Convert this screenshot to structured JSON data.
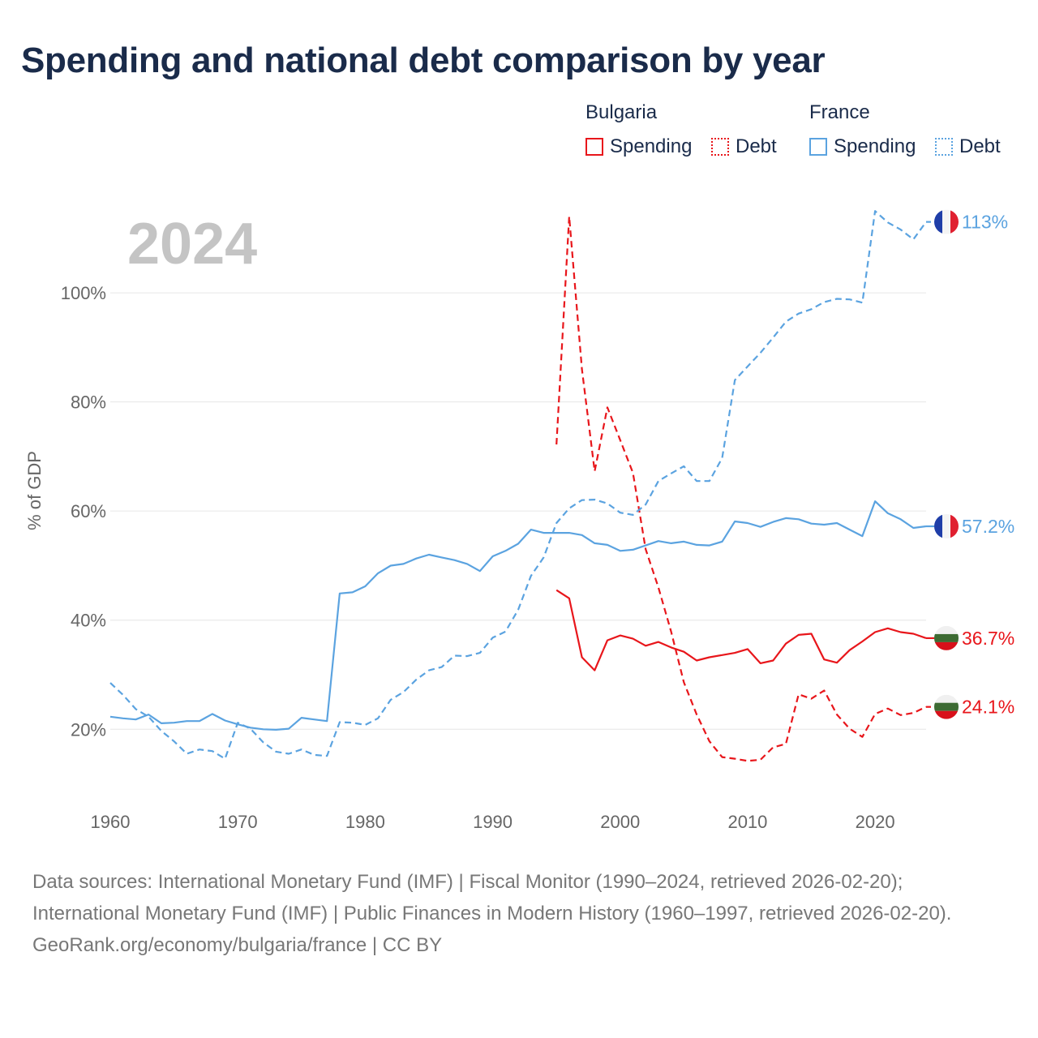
{
  "title": "Spending and national debt comparison by year",
  "legend": {
    "bulgaria": {
      "title": "Bulgaria",
      "spending": "Spending",
      "debt": "Debt"
    },
    "france": {
      "title": "France",
      "spending": "Spending",
      "debt": "Debt"
    }
  },
  "colors": {
    "bulgaria": "#e8161b",
    "france": "#5ba3e0",
    "year_watermark": "#c4c4c4",
    "grid": "#e6e6e6",
    "axis_text": "#666666"
  },
  "footer": {
    "sources": "Data sources: International Monetary Fund (IMF) | Fiscal Monitor (1990–2024, retrieved 2026-02-20); International Monetary Fund (IMF) | Public Finances in Modern History (1960–1997, retrieved 2026-02-20).",
    "credit": "GeoRank.org/economy/bulgaria/france | CC BY"
  },
  "chart_data": {
    "type": "line",
    "year_label": "2024",
    "ylabel": "% of GDP",
    "xlabel": "",
    "xlim": [
      1960,
      2024
    ],
    "ylim": [
      8,
      118
    ],
    "x_ticks": [
      1960,
      1970,
      1980,
      1990,
      2000,
      2010,
      2020
    ],
    "x_tick_labels": [
      "1960",
      "1970",
      "1980",
      "1990",
      "2000",
      "2010",
      "2020"
    ],
    "y_ticks": [
      20,
      40,
      60,
      80,
      100
    ],
    "y_tick_labels": [
      "20%",
      "40%",
      "60%",
      "80%",
      "100%"
    ],
    "series": [
      {
        "name": "Bulgaria Spending",
        "country": "bulgaria",
        "style": "solid",
        "end_label": "36.7%",
        "x": [
          1995,
          1996,
          1997,
          1998,
          1999,
          2000,
          2001,
          2002,
          2003,
          2004,
          2005,
          2006,
          2007,
          2008,
          2009,
          2010,
          2011,
          2012,
          2013,
          2014,
          2015,
          2016,
          2017,
          2018,
          2019,
          2020,
          2021,
          2022,
          2023,
          2024
        ],
        "y": [
          45.5,
          44.0,
          33.2,
          30.8,
          36.3,
          37.2,
          36.6,
          35.3,
          36.0,
          35.0,
          34.2,
          32.6,
          33.2,
          33.6,
          34.0,
          34.7,
          32.1,
          32.6,
          35.7,
          37.3,
          37.5,
          32.8,
          32.2,
          34.5,
          36.1,
          37.8,
          38.5,
          37.8,
          37.5,
          36.7
        ]
      },
      {
        "name": "Bulgaria Debt",
        "country": "bulgaria",
        "style": "dashed",
        "end_label": "24.1%",
        "x": [
          1995,
          1996,
          1997,
          1998,
          1999,
          2000,
          2001,
          2002,
          2003,
          2004,
          2005,
          2006,
          2007,
          2008,
          2009,
          2010,
          2011,
          2012,
          2013,
          2014,
          2015,
          2016,
          2017,
          2018,
          2019,
          2020,
          2021,
          2022,
          2023,
          2024
        ],
        "y": [
          72.2,
          114.0,
          86.0,
          67.3,
          79.0,
          73.0,
          67.0,
          53.0,
          46.0,
          37.9,
          28.6,
          22.7,
          17.8,
          14.9,
          14.6,
          14.2,
          14.4,
          16.7,
          17.3,
          26.4,
          25.6,
          27.1,
          22.7,
          20.1,
          18.6,
          22.8,
          23.8,
          22.6,
          23.0,
          24.1
        ]
      },
      {
        "name": "France Spending",
        "country": "france",
        "style": "solid",
        "end_label": "57.2%",
        "x": [
          1960,
          1961,
          1962,
          1963,
          1964,
          1965,
          1966,
          1967,
          1968,
          1969,
          1970,
          1971,
          1972,
          1973,
          1974,
          1975,
          1976,
          1977,
          1978,
          1979,
          1980,
          1981,
          1982,
          1983,
          1984,
          1985,
          1986,
          1987,
          1988,
          1989,
          1990,
          1991,
          1992,
          1993,
          1994,
          1995,
          1996,
          1997,
          1998,
          1999,
          2000,
          2001,
          2002,
          2003,
          2004,
          2005,
          2006,
          2007,
          2008,
          2009,
          2010,
          2011,
          2012,
          2013,
          2014,
          2015,
          2016,
          2017,
          2018,
          2019,
          2020,
          2021,
          2022,
          2023,
          2024
        ],
        "y": [
          22.3,
          22.0,
          21.8,
          22.7,
          21.1,
          21.2,
          21.5,
          21.5,
          22.8,
          21.6,
          20.9,
          20.3,
          20.0,
          19.9,
          20.1,
          22.1,
          21.8,
          21.5,
          44.9,
          45.1,
          46.2,
          48.6,
          50.0,
          50.3,
          51.3,
          52.0,
          51.5,
          51.0,
          50.3,
          49.0,
          51.7,
          52.7,
          54.0,
          56.6,
          56.0,
          56.0,
          56.0,
          55.6,
          54.1,
          53.8,
          52.7,
          52.9,
          53.7,
          54.5,
          54.1,
          54.4,
          53.8,
          53.7,
          54.4,
          58.1,
          57.8,
          57.1,
          58.0,
          58.7,
          58.5,
          57.7,
          57.5,
          57.8,
          56.6,
          55.4,
          61.8,
          59.6,
          58.5,
          56.9,
          57.2
        ]
      },
      {
        "name": "France Debt",
        "country": "france",
        "style": "dashed",
        "end_label": "113%",
        "x": [
          1960,
          1961,
          1962,
          1963,
          1964,
          1965,
          1966,
          1967,
          1968,
          1969,
          1970,
          1971,
          1972,
          1973,
          1974,
          1975,
          1976,
          1977,
          1978,
          1979,
          1980,
          1981,
          1982,
          1983,
          1984,
          1985,
          1986,
          1987,
          1988,
          1989,
          1990,
          1991,
          1992,
          1993,
          1994,
          1995,
          1996,
          1997,
          1998,
          1999,
          2000,
          2001,
          2002,
          2003,
          2004,
          2005,
          2006,
          2007,
          2008,
          2009,
          2010,
          2011,
          2012,
          2013,
          2014,
          2015,
          2016,
          2017,
          2018,
          2019,
          2020,
          2021,
          2022,
          2023,
          2024
        ],
        "y": [
          28.5,
          26.3,
          23.7,
          22.3,
          19.7,
          17.8,
          15.5,
          16.3,
          16.0,
          14.6,
          21.2,
          20.1,
          17.6,
          15.9,
          15.5,
          16.3,
          15.3,
          15.1,
          21.3,
          21.2,
          20.8,
          22.0,
          25.4,
          26.8,
          29.1,
          30.8,
          31.4,
          33.5,
          33.4,
          34.0,
          36.8,
          37.9,
          41.9,
          48.1,
          51.5,
          57.8,
          60.5,
          62.0,
          62.1,
          61.4,
          59.7,
          59.3,
          61.2,
          65.5,
          66.9,
          68.2,
          65.5,
          65.5,
          69.7,
          84.0,
          86.5,
          89.0,
          91.8,
          94.7,
          96.2,
          97.0,
          98.3,
          98.9,
          98.8,
          98.2,
          115.0,
          112.9,
          111.6,
          109.8,
          113.0
        ]
      }
    ]
  }
}
